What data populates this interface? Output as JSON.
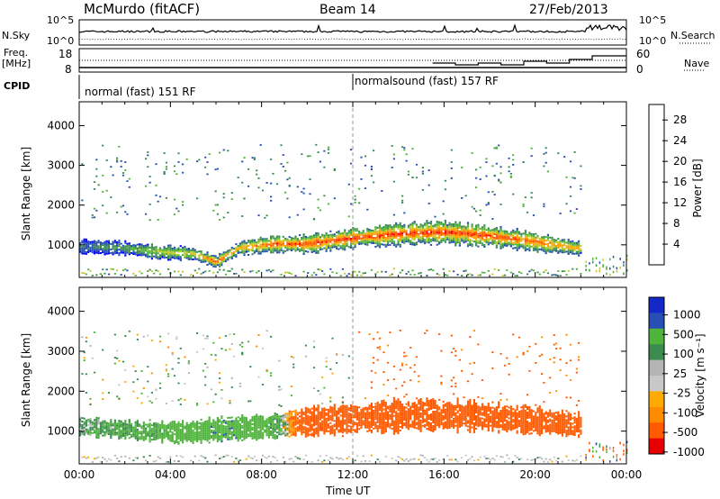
{
  "header": {
    "station": "McMurdo (fitACF)",
    "beam": "Beam 14",
    "date": "27/Feb/2013"
  },
  "noise_panel": {
    "left_label": "N.Sky",
    "right_label": "N.Search",
    "tick_top": "10^5",
    "tick_bottom": "10^0"
  },
  "freq_panel": {
    "left_label_line1": "Freq.",
    "left_label_line2": "[MHz]",
    "left_ticks": [
      "18",
      "8"
    ],
    "right_ticks": [
      "60",
      "0"
    ],
    "right_label": "Nave"
  },
  "cpid": {
    "label": "CPID",
    "segments": [
      {
        "text": "normal (fast) 151 RF",
        "start_hour": 0
      },
      {
        "text": "normalsound (fast) 157 RF",
        "start_hour": 12
      }
    ]
  },
  "x_axis": {
    "label": "Time UT",
    "ticks": [
      "00:00",
      "04:00",
      "08:00",
      "12:00",
      "16:00",
      "20:00",
      "00:00"
    ]
  },
  "colors": {
    "power_scale": [
      "#0000ff",
      "#2850b4",
      "#3c8c50",
      "#50b43c",
      "#c8c828",
      "#ffa000",
      "#ff5a00",
      "#ff0000"
    ],
    "velocity_scale": [
      "#e60000",
      "#ff5a00",
      "#ff8c00",
      "#ffaa00",
      "#c8c8c8",
      "#b4b4b4",
      "#3c8c50",
      "#50b43c",
      "#2850b4",
      "#1428c8"
    ]
  },
  "chart_data": [
    {
      "type": "heatmap",
      "name": "power_panel",
      "xlabel": "Time UT",
      "ylabel": "Slant Range [km]",
      "xlim": [
        0,
        24
      ],
      "ylim": [
        180,
        4600
      ],
      "y_ticks": [
        "1000",
        "2000",
        "3000",
        "4000"
      ],
      "colorbar_label": "Power [dB]",
      "colorbar_ticks": [
        "4",
        "8",
        "12",
        "16",
        "20",
        "24",
        "28"
      ],
      "colorbar_range": [
        0,
        31
      ],
      "echo_band": [
        {
          "hour": 0.0,
          "center_km": 950,
          "width_km": 350,
          "level": 8
        },
        {
          "hour": 2.0,
          "center_km": 900,
          "width_km": 300,
          "level": 12
        },
        {
          "hour": 3.5,
          "center_km": 800,
          "width_km": 300,
          "level": 18
        },
        {
          "hour": 5.0,
          "center_km": 750,
          "width_km": 300,
          "level": 20
        },
        {
          "hour": 6.0,
          "center_km": 550,
          "width_km": 250,
          "level": 26
        },
        {
          "hour": 7.0,
          "center_km": 900,
          "width_km": 300,
          "level": 22
        },
        {
          "hour": 8.5,
          "center_km": 1000,
          "width_km": 350,
          "level": 27
        },
        {
          "hour": 10.0,
          "center_km": 1000,
          "width_km": 400,
          "level": 28
        },
        {
          "hour": 12.0,
          "center_km": 1150,
          "width_km": 450,
          "level": 28
        },
        {
          "hour": 14.0,
          "center_km": 1250,
          "width_km": 500,
          "level": 28
        },
        {
          "hour": 16.0,
          "center_km": 1300,
          "width_km": 500,
          "level": 28
        },
        {
          "hour": 18.0,
          "center_km": 1200,
          "width_km": 450,
          "level": 28
        },
        {
          "hour": 20.0,
          "center_km": 1050,
          "width_km": 400,
          "level": 26
        },
        {
          "hour": 21.8,
          "center_km": 900,
          "width_km": 350,
          "level": 22
        }
      ]
    },
    {
      "type": "heatmap",
      "name": "velocity_panel",
      "xlabel": "Time UT",
      "ylabel": "Slant Range [km]",
      "xlim": [
        0,
        24
      ],
      "ylim": [
        180,
        4600
      ],
      "y_ticks": [
        "1000",
        "2000",
        "3000",
        "4000"
      ],
      "colorbar_label": "Velocity [m s⁻¹]",
      "colorbar_ticks": [
        "1000",
        "500",
        "100",
        "25",
        "-25",
        "-100",
        "-500",
        "-1000"
      ],
      "echo_band": [
        {
          "hour": 0.0,
          "center_km": 1100,
          "width_km": 400,
          "velocity": 50
        },
        {
          "hour": 2.5,
          "center_km": 1000,
          "width_km": 400,
          "velocity": 120
        },
        {
          "hour": 4.5,
          "center_km": 950,
          "width_km": 500,
          "velocity": 200
        },
        {
          "hour": 6.5,
          "center_km": 1050,
          "width_km": 500,
          "velocity": 250
        },
        {
          "hour": 8.5,
          "center_km": 1100,
          "width_km": 500,
          "velocity": 150
        },
        {
          "hour": 9.5,
          "center_km": 1200,
          "width_km": 600,
          "velocity": -150
        },
        {
          "hour": 12.0,
          "center_km": 1300,
          "width_km": 700,
          "velocity": -250
        },
        {
          "hour": 15.0,
          "center_km": 1400,
          "width_km": 700,
          "velocity": -250
        },
        {
          "hour": 18.0,
          "center_km": 1350,
          "width_km": 650,
          "velocity": -250
        },
        {
          "hour": 21.8,
          "center_km": 1150,
          "width_km": 500,
          "velocity": -200
        }
      ]
    }
  ]
}
